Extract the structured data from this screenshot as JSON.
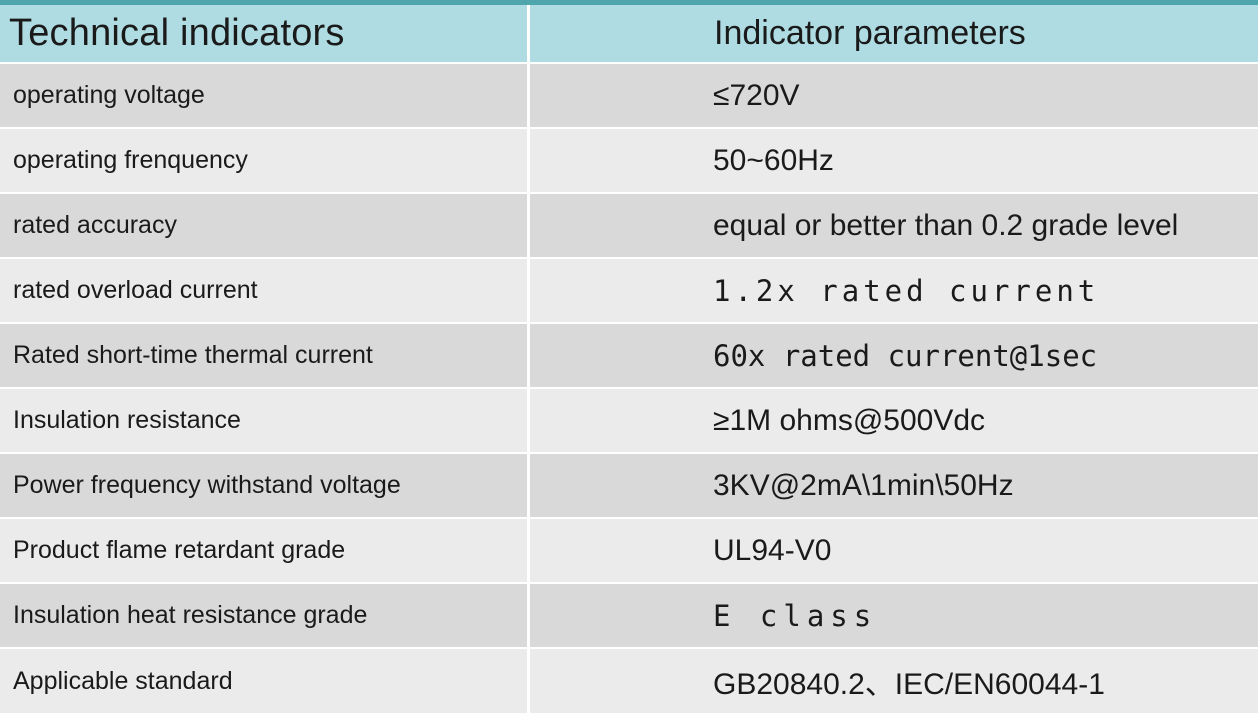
{
  "chart_data": {
    "type": "table",
    "columns": [
      "Technical indicators",
      "Indicator parameters"
    ],
    "rows": [
      [
        "operating voltage",
        "≤720V"
      ],
      [
        "operating frenquency",
        "50~60Hz"
      ],
      [
        "rated accuracy",
        "equal or better than 0.2 grade level"
      ],
      [
        "rated overload current",
        "1.2x rated current"
      ],
      [
        "Rated short-time thermal current",
        "60x rated current@1sec"
      ],
      [
        "Insulation resistance",
        "≥1M ohms@500Vdc"
      ],
      [
        "Power frequency withstand voltage",
        "3KV@2mA\\1min\\50Hz"
      ],
      [
        "Product flame retardant grade",
        "UL94-V0"
      ],
      [
        "Insulation heat resistance grade",
        "E class"
      ],
      [
        "Applicable standard",
        "GB20840.2、IEC/EN60044-1"
      ]
    ]
  },
  "colors": {
    "accent_top": "#4fa5ac",
    "header_bg": "#aedce2",
    "row_dark": "#d9d9d9",
    "row_light": "#ebebeb",
    "separator": "#ffffff",
    "text": "#1a1a1a"
  }
}
